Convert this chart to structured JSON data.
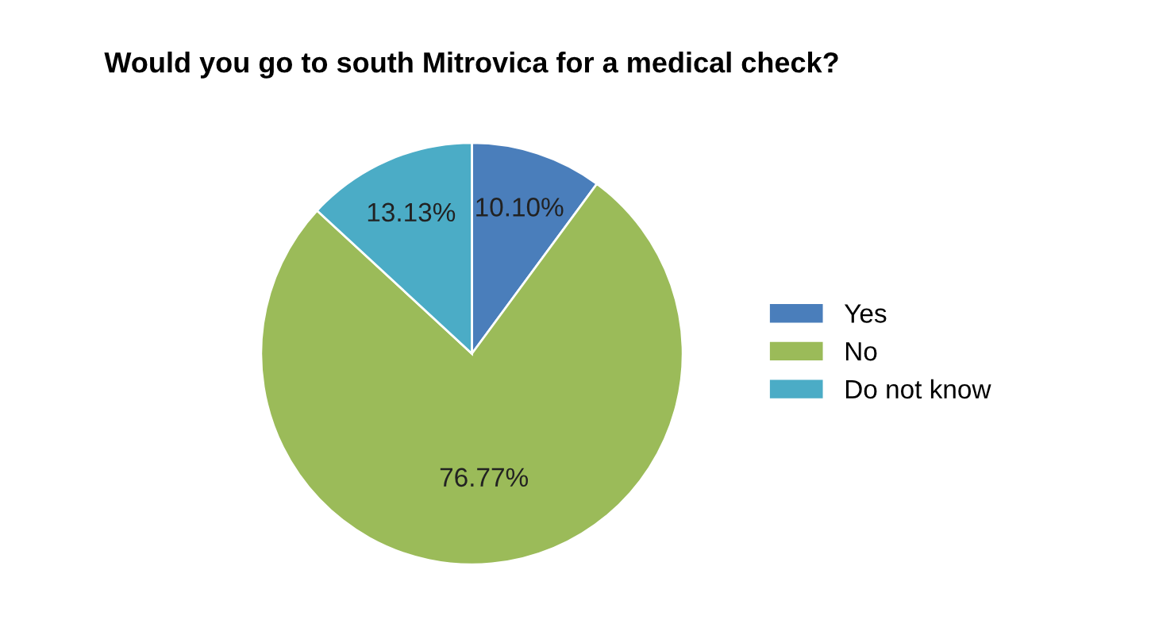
{
  "chart_data": {
    "type": "pie",
    "title": "Would you go to south Mitrovica for a medical check?",
    "categories": [
      "Yes",
      "No",
      "Do not know"
    ],
    "values": [
      10.1,
      76.77,
      13.13
    ],
    "colors": [
      "#4a7ebb",
      "#9bbb59",
      "#4bacc6"
    ],
    "value_labels": [
      "10.10%",
      "76.77%",
      "13.13%"
    ],
    "legend": "right"
  }
}
